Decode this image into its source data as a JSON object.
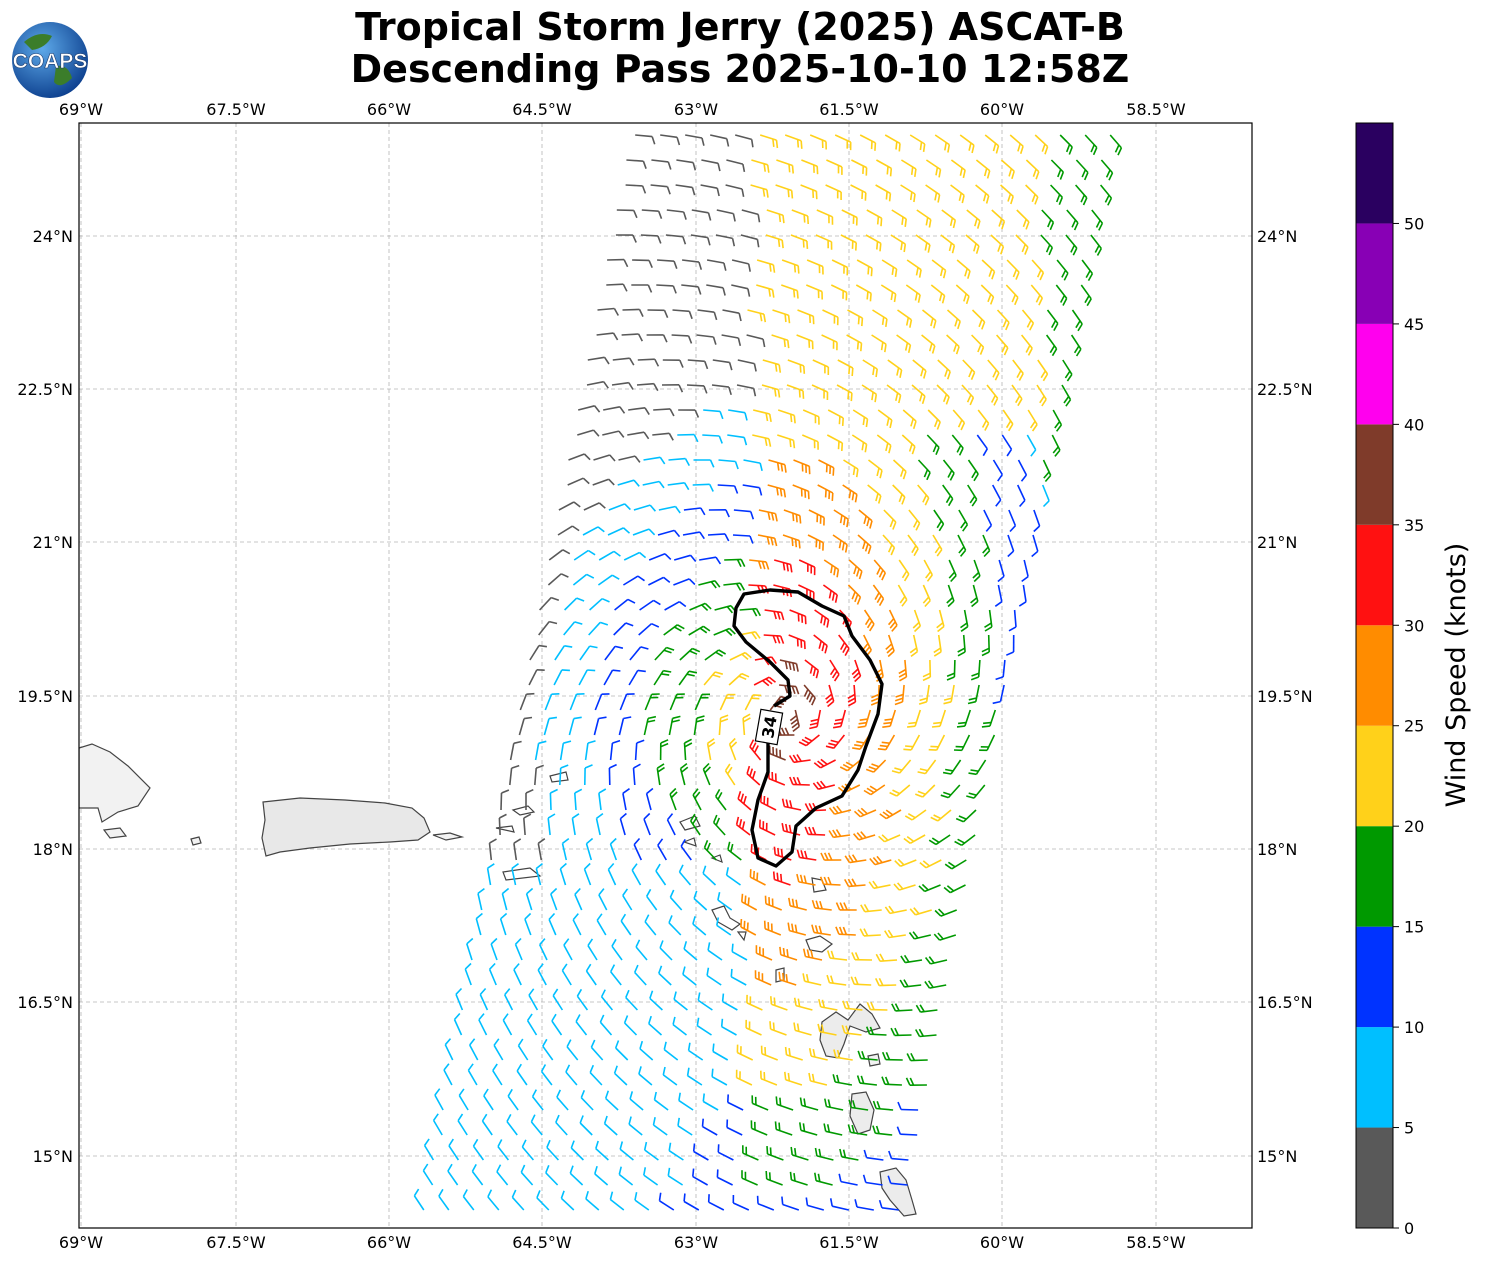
{
  "title_line1": "Tropical Storm Jerry (2025) ASCAT-B",
  "title_line2": "Descending Pass 2025-10-10 12:58Z",
  "logo_text": "COAPS",
  "map": {
    "lon_ticks": [
      "69°W",
      "67.5°W",
      "66°W",
      "64.5°W",
      "63°W",
      "61.5°W",
      "60°W",
      "58.5°W"
    ],
    "lat_ticks": [
      "24°N",
      "22.5°N",
      "21°N",
      "19.5°N",
      "18°N",
      "16.5°N",
      "15°N"
    ],
    "contour_label": "34"
  },
  "colorbar": {
    "label": "Wind Speed (knots)",
    "ticks": [
      "0",
      "5",
      "10",
      "15",
      "20",
      "25",
      "30",
      "35",
      "40",
      "45",
      "50"
    ],
    "colors": [
      "#595959",
      "#00bfff",
      "#0033ff",
      "#009900",
      "#ffd11a",
      "#ff8c00",
      "#ff1111",
      "#7f3b2a",
      "#ff00ee",
      "#8800b5",
      "#2a0060"
    ]
  }
}
